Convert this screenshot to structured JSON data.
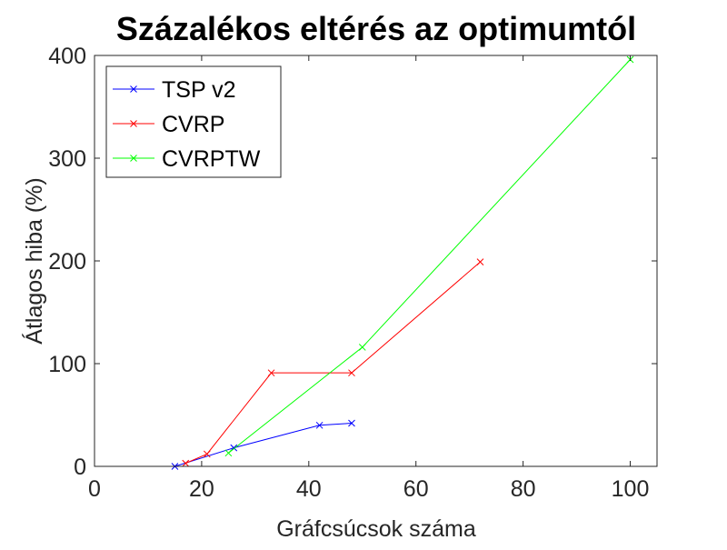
{
  "chart_data": {
    "type": "line",
    "title": "Százalékos eltérés az optimumtól",
    "xlabel": "Gráfcsúcsok száma",
    "ylabel": "Átlagos hiba (%)",
    "xlim": [
      0,
      105
    ],
    "ylim": [
      0,
      400
    ],
    "xticks": [
      0,
      20,
      40,
      60,
      80,
      100
    ],
    "yticks": [
      0,
      100,
      200,
      300,
      400
    ],
    "grid": false,
    "legend_position": "top-left",
    "series": [
      {
        "name": "TSP v2",
        "color": "#0000ff",
        "marker": "x",
        "x": [
          15,
          26,
          42,
          48
        ],
        "y": [
          0,
          18,
          40,
          42
        ]
      },
      {
        "name": "CVRP",
        "color": "#ff0000",
        "marker": "x",
        "x": [
          17,
          21,
          33,
          48,
          72
        ],
        "y": [
          3,
          12,
          91,
          91,
          199
        ]
      },
      {
        "name": "CVRPTW",
        "color": "#00ff00",
        "marker": "x",
        "x": [
          25,
          50,
          100
        ],
        "y": [
          13,
          116,
          396
        ]
      }
    ]
  }
}
